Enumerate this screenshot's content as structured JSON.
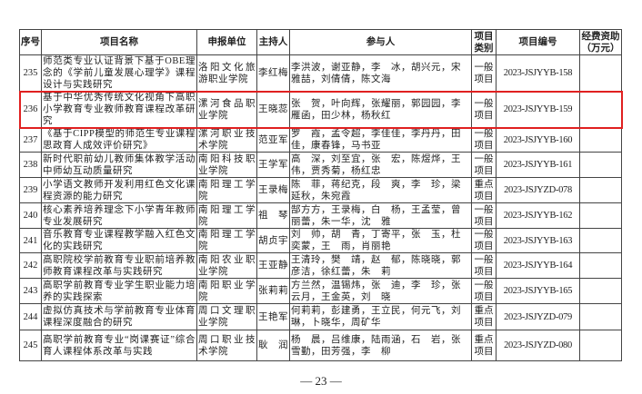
{
  "headers": {
    "no": "序号",
    "name": "项目名称",
    "unit": "申报单位",
    "host": "主持人",
    "members": "参与人",
    "type": "项目类别",
    "code": "项目编号",
    "fund": "经费资助（万元）"
  },
  "rows": [
    {
      "no": "235",
      "name": "师范类专业认证背景下基于OBE理念的《学前儿童发展心理学》课程设计与实践研究",
      "unit": "洛阳文化旅游职业学院",
      "host": "李红梅",
      "members": "李洪波，谢亚静，李　冰，胡兴元，宋雅喆，刘倩倩，陈文海",
      "type": "一般项目",
      "code": "2023-JSJYYB-158",
      "fund": ""
    },
    {
      "no": "236",
      "name": "基于中华优秀传统文化视角下高职小学教育专业教师教育课程改革研究",
      "unit": "漯河食品职业学院",
      "host": "王晓蕊",
      "members": "张　贺，叶向辉，张耀丽，郭园园，李雁函，田少林，杨秋红",
      "type": "一般项目",
      "code": "2023-JSJYYB-159",
      "fund": ""
    },
    {
      "no": "237",
      "name": "《基于CIPP模型的师范生专业课程思政育人成效评价研究》",
      "unit": "漯河职业技术学院",
      "host": "范亚军",
      "members": "罗　霞，孟令超，李佳佳，李丹丹，田　佳，康春锋，马书亚",
      "type": "一般项目",
      "code": "2023-JSJYYB-160",
      "fund": ""
    },
    {
      "no": "238",
      "name": "新时代职前幼儿教师集体教学活动中师幼互动质量研究",
      "unit": "南阳科技职业学院",
      "host": "王学军",
      "members": "高　深，刘至宜，张　宏，陈煜烨，王　伟，贾秀菊，杨红忠",
      "type": "一般项目",
      "code": "2023-JSJYYB-161",
      "fund": ""
    },
    {
      "no": "239",
      "name": "小学语文教师开发利用红色文化课程资源的能力研究",
      "unit": "南阳理工学院",
      "host": "王录梅",
      "members": "陈　菲，蒋纪克，段　爽，李　珍，梁延秋，朱宛霞",
      "type": "重点项目",
      "code": "2023-JSJYZD-078",
      "fund": ""
    },
    {
      "no": "240",
      "name": "核心素养培养理念下小学青年教师专业发展研究",
      "unit": "南阳理工学院",
      "host": "祖　琴",
      "members": "郜方方，王录梅，白　杨，王孟莹，曾丽蕾，朱一华，沈　雅",
      "type": "一般项目",
      "code": "2023-JSJYYB-162",
      "fund": ""
    },
    {
      "no": "241",
      "name": "音乐教育专业课程教学融入红色文化的实践研究",
      "unit": "南阳理工学院",
      "host": "胡贞宇",
      "members": "刘　帅，胡　青，丁寄平，张　玉，杜奕蒙，王　雨，肖丽艳",
      "type": "一般项目",
      "code": "2023-JSJYYB-163",
      "fund": ""
    },
    {
      "no": "242",
      "name": "高职院校学前教育专业职前培养教师教育课程改革与实践研究",
      "unit": "南阳农业职业学院",
      "host": "王亚静",
      "members": "王清玲，樊　靖，赵　郁，陈晓晓，郭彦洁，徐红蕾，朱　莉",
      "type": "一般项目",
      "code": "2023-JSJYYB-164",
      "fund": ""
    },
    {
      "no": "243",
      "name": "高职学前教育专业学生职业能力培养的实践探索",
      "unit": "南阳职业学院",
      "host": "张莉莉",
      "members": "方兰然，温锡炜，张　迪，李　珍，张云月，王金英，刘　晓",
      "type": "一般项目",
      "code": "2023-JSJYYB-165",
      "fund": ""
    },
    {
      "no": "244",
      "name": "虚拟仿真技术与学前教育专业体育课程深度融合的研究",
      "unit": "周口文理职业学院",
      "host": "王艳军",
      "members": "何莉莉，彭建勇，王立民，何元飞，刘　琳，卜晓华，周矿华",
      "type": "重点项目",
      "code": "2023-JSJYZD-079",
      "fund": ""
    },
    {
      "no": "245",
      "name": "高职学前教育专业“岗课赛证”综合育人课程体系改革与实践",
      "unit": "周口职业技术学院",
      "host": "耿　润",
      "members": "杨　晨，吕维康，陆雨涵，石　岩，张雪勤，田芳强，李　柳",
      "type": "重点项目",
      "code": "2023-JSJYZD-080",
      "fund": ""
    }
  ],
  "footer": {
    "page": "— 23 —"
  },
  "highlight_color": "#e02020"
}
